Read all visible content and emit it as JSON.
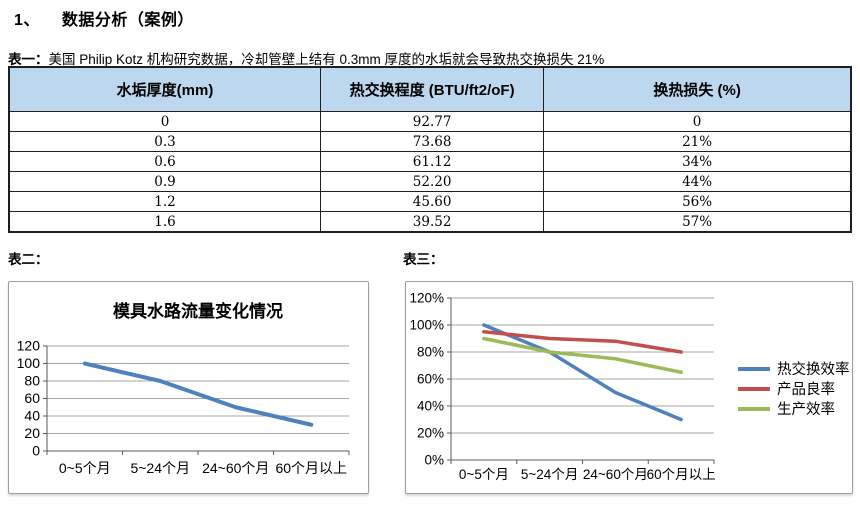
{
  "page": {
    "heading_number": "1、",
    "heading": "数据分析（案例）",
    "table1_label": "表一：",
    "table1_caption": "美国 Philip Kotz 机构研究数据，冷却管壁上结有 0.3mm 厚度的水垢就会导致热交换损失 21%",
    "table2_label": "表二：",
    "table3_label": "表三："
  },
  "table1": {
    "headers": [
      "水垢厚度(mm)",
      "热交换程度 (BTU/ft2/oF)",
      "换热损失 (%)"
    ],
    "rows": [
      [
        "0",
        "92.77",
        "0"
      ],
      [
        "0.3",
        "73.68",
        "21%"
      ],
      [
        "0.6",
        "61.12",
        "34%"
      ],
      [
        "0.9",
        "52.20",
        "44%"
      ],
      [
        "1.2",
        "45.60",
        "56%"
      ],
      [
        "1.6",
        "39.52",
        "57%"
      ]
    ],
    "header_bg": "#BDD7EE"
  },
  "chart_data": [
    {
      "type": "line",
      "title": "模具水路流量变化情况",
      "categories": [
        "0~5个月",
        "5~24个月",
        "24~60个月",
        "60个月以上"
      ],
      "series": [
        {
          "name": "",
          "color": "#4F81BD",
          "values": [
            100,
            80,
            50,
            30
          ]
        }
      ],
      "xlabel": "",
      "ylabel": "",
      "ylim": [
        0,
        120
      ],
      "ytick_step": 20,
      "ytick_suffix": "",
      "grid": true,
      "legend": false
    },
    {
      "type": "line",
      "title": "",
      "categories": [
        "0~5个月",
        "5~24个月",
        "24~60个月",
        "60个月以上"
      ],
      "series": [
        {
          "name": "热交换效率",
          "color": "#4F81BD",
          "values": [
            100,
            80,
            50,
            30
          ]
        },
        {
          "name": "产品良率",
          "color": "#C0504D",
          "values": [
            95,
            90,
            88,
            80
          ]
        },
        {
          "name": "生产效率",
          "color": "#9BBB59",
          "values": [
            90,
            80,
            75,
            65
          ]
        }
      ],
      "xlabel": "",
      "ylabel": "",
      "ylim": [
        0,
        120
      ],
      "ytick_step": 20,
      "ytick_suffix": "%",
      "grid": true,
      "legend": true,
      "legend_position": "right"
    }
  ]
}
